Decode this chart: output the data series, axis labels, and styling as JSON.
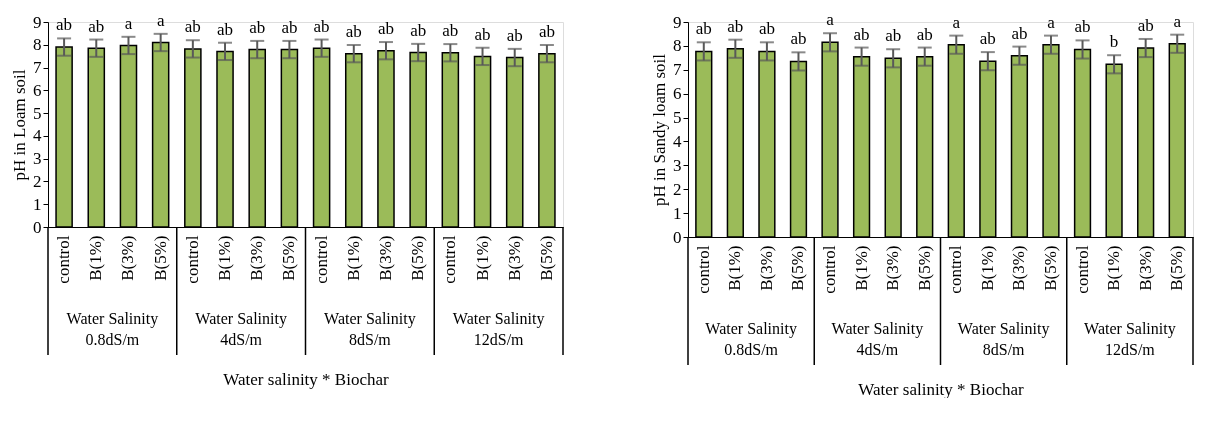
{
  "chart_data": [
    {
      "type": "bar",
      "xlabel": "Water salinity * Biochar",
      "ylabel": "pH in Loam soil",
      "color": "#9bbb59",
      "categories": [
        "control",
        "B(1%)",
        "B(3%)",
        "B(5%)",
        "control",
        "B(1%)",
        "B(3%)",
        "B(5%)",
        "control",
        "B(1%)",
        "B(3%)",
        "B(5%)",
        "control",
        "B(1%)",
        "B(3%)",
        "B(5%)"
      ],
      "values": [
        7.9,
        7.85,
        7.97,
        8.1,
        7.82,
        7.71,
        7.79,
        7.79,
        7.85,
        7.61,
        7.74,
        7.66,
        7.65,
        7.49,
        7.44,
        7.61
      ],
      "errors": [
        0.38,
        0.38,
        0.38,
        0.38,
        0.38,
        0.38,
        0.38,
        0.38,
        0.38,
        0.38,
        0.38,
        0.38,
        0.38,
        0.38,
        0.38,
        0.38
      ],
      "value_labels": [
        "ab",
        "ab",
        "a",
        "a",
        "ab",
        "ab",
        "ab",
        "ab",
        "ab",
        "ab",
        "ab",
        "ab",
        "ab",
        "ab",
        "ab",
        "ab"
      ],
      "annotations": [
        "Water Salinity\n0.8dS/m",
        "Water Salinity\n4dS/m",
        "Water Salinity\n8dS/m",
        "Water Salinity\n12dS/m"
      ],
      "ylim": [
        0,
        9
      ],
      "yticks": [
        0,
        1,
        2,
        3,
        4,
        5,
        6,
        7,
        8,
        9
      ]
    },
    {
      "type": "bar",
      "xlabel": "Water salinity * Biochar",
      "ylabel": "pH in Sandy loam soil",
      "color": "#9bbb59",
      "categories": [
        "control",
        "B(1%)",
        "B(3%)",
        "B(5%)",
        "control",
        "B(1%)",
        "B(3%)",
        "B(5%)",
        "control",
        "B(1%)",
        "B(3%)",
        "B(5%)",
        "control",
        "B(1%)",
        "B(3%)",
        "B(5%)"
      ],
      "values": [
        7.77,
        7.88,
        7.77,
        7.35,
        8.15,
        7.55,
        7.48,
        7.55,
        8.05,
        7.36,
        7.59,
        8.05,
        7.85,
        7.23,
        7.91,
        8.09
      ],
      "errors": [
        0.38,
        0.38,
        0.38,
        0.38,
        0.38,
        0.38,
        0.38,
        0.38,
        0.38,
        0.38,
        0.38,
        0.38,
        0.38,
        0.38,
        0.38,
        0.38
      ],
      "value_labels": [
        "ab",
        "ab",
        "ab",
        "ab",
        "a",
        "ab",
        "ab",
        "ab",
        "a",
        "ab",
        "ab",
        "a",
        "ab",
        "b",
        "ab",
        "a"
      ],
      "annotations": [
        "Water Salinity\n0.8dS/m",
        "Water Salinity\n4dS/m",
        "Water Salinity\n8dS/m",
        "Water Salinity\n12dS/m"
      ],
      "ylim": [
        0,
        9
      ],
      "yticks": [
        0,
        1,
        2,
        3,
        4,
        5,
        6,
        7,
        8,
        9
      ]
    }
  ]
}
